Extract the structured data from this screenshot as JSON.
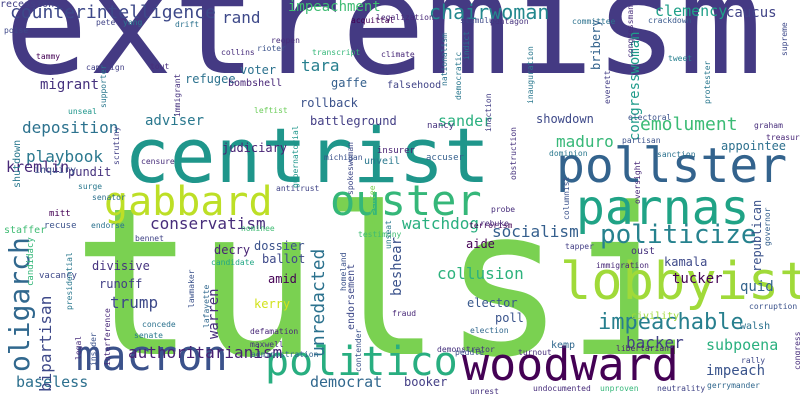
{
  "background": "#ffffff",
  "words": [
    {
      "text": "extremism",
      "color": "#443a83"
    },
    {
      "text": "tulsi",
      "color": "#7ad151"
    },
    {
      "text": "centrist",
      "color": "#1f968b"
    },
    {
      "text": "pollster",
      "color": "#33638d"
    },
    {
      "text": "parnas",
      "color": "#20a386"
    },
    {
      "text": "woodward",
      "color": "#440154"
    },
    {
      "text": "lobbyist",
      "color": "#a0da39"
    },
    {
      "text": "macron",
      "color": "#3b528b"
    },
    {
      "text": "politico",
      "color": "#28ae80"
    },
    {
      "text": "ouster",
      "color": "#35b779"
    },
    {
      "text": "gabbard",
      "color": "#bddf26"
    },
    {
      "text": "oligarch",
      "color": "#31688e"
    },
    {
      "text": "politicize",
      "color": "#26828e"
    },
    {
      "text": "impeachable",
      "color": "#277f8e"
    },
    {
      "text": "chairwoman",
      "color": "#23888e"
    },
    {
      "text": "counterintelligence",
      "color": "#3e4989"
    },
    {
      "text": "conservatism",
      "color": "#472d7b"
    },
    {
      "text": "emolument",
      "color": "#3bbb75"
    },
    {
      "text": "deposition",
      "color": "#2c728e"
    },
    {
      "text": "playbook",
      "color": "#2a788e"
    },
    {
      "text": "authoritarianism",
      "color": "#482173"
    },
    {
      "text": "socialism",
      "color": "#355f8d"
    },
    {
      "text": "watchdog",
      "color": "#29af7f"
    },
    {
      "text": "collusion",
      "color": "#2db27d"
    },
    {
      "text": "unredacted",
      "color": "#2c728e"
    },
    {
      "text": "clemency",
      "color": "#1fa088"
    },
    {
      "text": "impeachment",
      "color": "#3fbc73"
    },
    {
      "text": "subpoena",
      "color": "#2ab07f"
    },
    {
      "text": "backer",
      "color": "#424086"
    },
    {
      "text": "baseless",
      "color": "#2d708e"
    },
    {
      "text": "democrat",
      "color": "#31688e"
    },
    {
      "text": "bipartisan",
      "color": "#3e4989"
    },
    {
      "text": "congresswoman",
      "color": "#1e9b8a"
    },
    {
      "text": "maduro",
      "color": "#37b878"
    },
    {
      "text": "impeach",
      "color": "#3a548c"
    },
    {
      "text": "caucus",
      "color": "#414487"
    },
    {
      "text": "adviser",
      "color": "#2a788e"
    },
    {
      "text": "sander",
      "color": "#2ab07f"
    },
    {
      "text": "rand",
      "color": "#3e4989"
    },
    {
      "text": "tara",
      "color": "#277f8e"
    },
    {
      "text": "kremlin",
      "color": "#482878"
    },
    {
      "text": "trump",
      "color": "#3e4989"
    },
    {
      "text": "beshear",
      "color": "#3b528b"
    },
    {
      "text": "quid",
      "color": "#33638d"
    },
    {
      "text": "tucker",
      "color": "#440154"
    },
    {
      "text": "migrant",
      "color": "#46327e"
    },
    {
      "text": "battleground",
      "color": "#433e85"
    },
    {
      "text": "judiciary",
      "color": "#482475"
    },
    {
      "text": "showdown",
      "color": "#3e4989"
    },
    {
      "text": "appointee",
      "color": "#2d708e"
    },
    {
      "text": "pundit",
      "color": "#46327e"
    },
    {
      "text": "dossier",
      "color": "#3b528b"
    },
    {
      "text": "divisive",
      "color": "#46337f"
    },
    {
      "text": "ballot",
      "color": "#3e4989"
    },
    {
      "text": "kerry",
      "color": "#d2e21b"
    },
    {
      "text": "warren",
      "color": "#472f7d"
    },
    {
      "text": "runoff",
      "color": "#424086"
    },
    {
      "text": "decry",
      "color": "#482475"
    },
    {
      "text": "refugee",
      "color": "#2c728e"
    },
    {
      "text": "voter",
      "color": "#2c728e"
    },
    {
      "text": "gaffe",
      "color": "#35608d"
    },
    {
      "text": "rollback",
      "color": "#3b528b"
    },
    {
      "text": "falsehood",
      "color": "#414487"
    },
    {
      "text": "bombshell",
      "color": "#482677"
    },
    {
      "text": "amid",
      "color": "#440154"
    },
    {
      "text": "aide",
      "color": "#440154"
    },
    {
      "text": "elector",
      "color": "#38588c"
    },
    {
      "text": "poll",
      "color": "#3a548c"
    },
    {
      "text": "kamala",
      "color": "#3e4989"
    },
    {
      "text": "oust",
      "color": "#46327e"
    },
    {
      "text": "republican",
      "color": "#3b528b"
    },
    {
      "text": "kemp",
      "color": "#31688e"
    },
    {
      "text": "booker",
      "color": "#433e85"
    },
    {
      "text": "walsh",
      "color": "#2c728e"
    },
    {
      "text": "unveil",
      "color": "#2a788e"
    },
    {
      "text": "nancy",
      "color": "#46327e"
    },
    {
      "text": "insurer",
      "color": "#482173"
    },
    {
      "text": "accuser",
      "color": "#35608d"
    },
    {
      "text": "inquiry",
      "color": "#3b528b"
    },
    {
      "text": "staffer",
      "color": "#3fbc73"
    },
    {
      "text": "shutdown",
      "color": "#2a788e"
    },
    {
      "text": "mitt",
      "color": "#440154"
    },
    {
      "text": "recuse",
      "color": "#3b528b"
    },
    {
      "text": "vacancy",
      "color": "#3e4989"
    },
    {
      "text": "candidacy",
      "color": "#35b779"
    },
    {
      "text": "endorse",
      "color": "#2c728e"
    },
    {
      "text": "bennet",
      "color": "#414487"
    },
    {
      "text": "endorsement",
      "color": "#3e4989"
    },
    {
      "text": "terrorism",
      "color": "#440154"
    },
    {
      "text": "demonstrator",
      "color": "#46327e"
    },
    {
      "text": "tapper",
      "color": "#433e85"
    },
    {
      "text": "civility",
      "color": "#a0da39"
    },
    {
      "text": "corruption",
      "color": "#3b528b"
    },
    {
      "text": "legalization",
      "color": "#482878"
    },
    {
      "text": "acquittal",
      "color": "#440154"
    },
    {
      "text": "stimulus",
      "color": "#3e4989"
    },
    {
      "text": "committee",
      "color": "#2c728e"
    },
    {
      "text": "crackdown",
      "color": "#38588c"
    },
    {
      "text": "congressman",
      "color": "#472d7b"
    },
    {
      "text": "supreme",
      "color": "#3e4989"
    },
    {
      "text": "tweet",
      "color": "#277f8e"
    },
    {
      "text": "collins",
      "color": "#472d7b"
    },
    {
      "text": "rioter",
      "color": "#3b528b"
    },
    {
      "text": "reopen",
      "color": "#472d7b"
    },
    {
      "text": "transcript",
      "color": "#35b779"
    },
    {
      "text": "climate",
      "color": "#482878"
    },
    {
      "text": "indict",
      "color": "#2c728e"
    },
    {
      "text": "inauguration",
      "color": "#2a788e"
    },
    {
      "text": "bribery",
      "color": "#33638d"
    },
    {
      "text": "campaign",
      "color": "#424086"
    },
    {
      "text": "tout",
      "color": "#472d7b"
    },
    {
      "text": "drift",
      "color": "#2c728e"
    },
    {
      "text": "pete",
      "color": "#414487"
    },
    {
      "text": "yang",
      "color": "#2a788e"
    },
    {
      "text": "poise",
      "color": "#3e4989"
    },
    {
      "text": "tammy",
      "color": "#440154"
    },
    {
      "text": "censure",
      "color": "#472d7b"
    },
    {
      "text": "senator",
      "color": "#2d708e"
    },
    {
      "text": "surge",
      "color": "#2a788e"
    },
    {
      "text": "leftist",
      "color": "#6ccd5a"
    },
    {
      "text": "antitrust",
      "color": "#414487"
    },
    {
      "text": "testimony",
      "color": "#3fbc73"
    },
    {
      "text": "nominee",
      "color": "#3fbc73"
    },
    {
      "text": "spokeswoman",
      "color": "#3e4989"
    },
    {
      "text": "absentee",
      "color": "#7ad151"
    },
    {
      "text": "unseat",
      "color": "#2a788e"
    },
    {
      "text": "homeland",
      "color": "#3b528b"
    },
    {
      "text": "defamation",
      "color": "#482878"
    },
    {
      "text": "lawmaker",
      "color": "#3b528b"
    },
    {
      "text": "lafayette",
      "color": "#31688e"
    },
    {
      "text": "candidate",
      "color": "#22a785"
    },
    {
      "text": "concede",
      "color": "#2c728e"
    },
    {
      "text": "senate",
      "color": "#2a788e"
    },
    {
      "text": "maxwell",
      "color": "#46327e"
    },
    {
      "text": "fraud",
      "color": "#482878"
    },
    {
      "text": "election",
      "color": "#31688e"
    },
    {
      "text": "peddle",
      "color": "#3b528b"
    },
    {
      "text": "turnout",
      "color": "#472d7b"
    },
    {
      "text": "administration",
      "color": "#33638d"
    },
    {
      "text": "unrest",
      "color": "#46327e"
    },
    {
      "text": "undocumented",
      "color": "#472d7b"
    },
    {
      "text": "unproven",
      "color": "#35b779"
    },
    {
      "text": "neutrality",
      "color": "#414487"
    },
    {
      "text": "gerrymander",
      "color": "#31688e"
    },
    {
      "text": "libertarian",
      "color": "#482173"
    },
    {
      "text": "rally",
      "color": "#3e4989"
    },
    {
      "text": "congress",
      "color": "#472d7b"
    },
    {
      "text": "interference",
      "color": "#482878"
    },
    {
      "text": "insider",
      "color": "#3b528b"
    },
    {
      "text": "legal",
      "color": "#472d7b"
    },
    {
      "text": "presidential",
      "color": "#2a788e"
    },
    {
      "text": "unseal",
      "color": "#1f968b"
    },
    {
      "text": "supporter",
      "color": "#2a788e"
    },
    {
      "text": "scrutiny",
      "color": "#424086"
    },
    {
      "text": "immigrant",
      "color": "#46327e"
    },
    {
      "text": "gubernatorial",
      "color": "#1f968b"
    },
    {
      "text": "michigan",
      "color": "#3b528b"
    },
    {
      "text": "rebuke",
      "color": "#482878"
    },
    {
      "text": "probe",
      "color": "#472d7b"
    },
    {
      "text": "columnist",
      "color": "#3b528b"
    },
    {
      "text": "pentagon",
      "color": "#46327e"
    },
    {
      "text": "partisan",
      "color": "#3b528b"
    },
    {
      "text": "sanction",
      "color": "#2c728e"
    },
    {
      "text": "oversight",
      "color": "#482878"
    },
    {
      "text": "governor",
      "color": "#35608d"
    },
    {
      "text": "treasury",
      "color": "#482677"
    },
    {
      "text": "graham",
      "color": "#472d7b"
    },
    {
      "text": "everett",
      "color": "#433e85"
    },
    {
      "text": "electoral",
      "color": "#3b528b"
    },
    {
      "text": "protester",
      "color": "#2a788e"
    },
    {
      "text": "democratic",
      "color": "#2a788e"
    },
    {
      "text": "nationalism",
      "color": "#2c728e"
    },
    {
      "text": "inaction",
      "color": "#433e85"
    },
    {
      "text": "dominion",
      "color": "#2a788e"
    },
    {
      "text": "immigration",
      "color": "#482878"
    },
    {
      "text": "contender",
      "color": "#3b528b"
    },
    {
      "text": "obstruction",
      "color": "#46327e"
    },
    {
      "text": "recession",
      "color": "#424086"
    }
  ]
}
